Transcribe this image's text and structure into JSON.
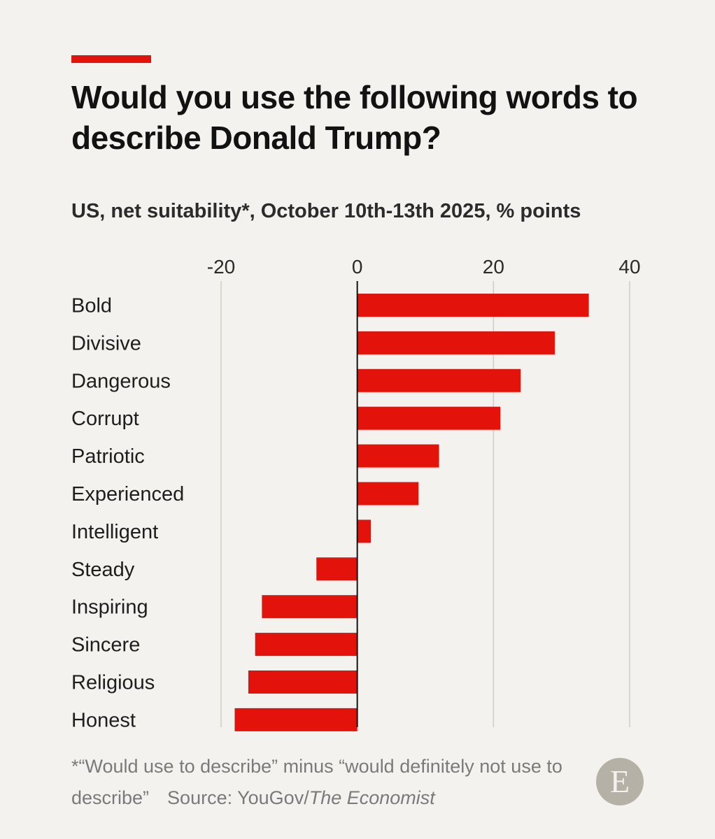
{
  "title": "Would you use the following words to describe Donald Trump?",
  "subtitle": "US, net suitability*, October 10th-13th 2025, % points",
  "footnote": "*“Would use to describe” minus “would definitely not use to describe”",
  "source_label": "Source: YouGov/",
  "source_publication": "The Economist",
  "logo_letter": "E",
  "colors": {
    "bar": "#e3120b",
    "accent": "#e3120b",
    "grid": "#d0ccc4",
    "zero_line": "#121212"
  },
  "chart_data": {
    "type": "bar",
    "orientation": "horizontal",
    "title": "Would you use the following words to describe Donald Trump?",
    "subtitle": "US, net suitability*, October 10th-13th 2025, % points",
    "xlabel": "% points",
    "ylabel": "",
    "xlim": [
      -20,
      40
    ],
    "ticks": [
      -20,
      0,
      20,
      40
    ],
    "tick_labels": [
      "-20",
      "0",
      "20",
      "40"
    ],
    "categories": [
      "Bold",
      "Divisive",
      "Dangerous",
      "Corrupt",
      "Patriotic",
      "Experienced",
      "Intelligent",
      "Steady",
      "Inspiring",
      "Sincere",
      "Religious",
      "Honest"
    ],
    "values": [
      34,
      29,
      24,
      21,
      12,
      9,
      2,
      -6,
      -14,
      -15,
      -16,
      -18
    ],
    "grid": true,
    "legend": "none"
  }
}
